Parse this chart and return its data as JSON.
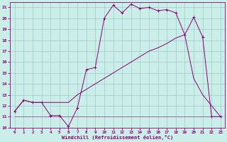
{
  "xlabel": "Windchill (Refroidissement éolien,°C)",
  "bg_color": "#cceee8",
  "grid_color": "#99cccc",
  "line_color": "#880077",
  "xlim": [
    -0.5,
    23.5
  ],
  "ylim": [
    10,
    21.5
  ],
  "yticks": [
    10,
    11,
    12,
    13,
    14,
    15,
    16,
    17,
    18,
    19,
    20,
    21
  ],
  "xticks": [
    0,
    1,
    2,
    3,
    4,
    5,
    6,
    7,
    8,
    9,
    10,
    11,
    12,
    13,
    14,
    15,
    16,
    17,
    18,
    19,
    20,
    21,
    22,
    23
  ],
  "curve1_x": [
    0,
    1,
    2,
    3,
    4,
    5,
    6,
    7,
    8,
    9,
    10,
    11,
    12,
    13,
    14,
    15,
    16,
    17,
    18,
    19,
    20,
    21,
    22,
    23
  ],
  "curve1_y": [
    11.5,
    12.5,
    12.3,
    12.3,
    11.1,
    11.1,
    10.1,
    11.8,
    15.3,
    15.5,
    20.0,
    21.2,
    20.5,
    21.3,
    20.9,
    21.0,
    20.7,
    20.8,
    20.5,
    18.5,
    20.1,
    18.3,
    11.0,
    11.0
  ],
  "curve2_x": [
    0,
    1,
    2,
    3,
    4,
    5,
    6,
    7,
    8,
    9,
    10,
    11,
    12,
    13,
    14,
    15,
    16,
    17,
    18,
    19,
    20,
    21,
    22,
    23
  ],
  "curve2_y": [
    11.0,
    11.0,
    11.0,
    11.0,
    11.0,
    11.0,
    11.0,
    11.0,
    11.0,
    11.0,
    11.0,
    11.0,
    11.0,
    11.0,
    11.0,
    11.0,
    11.0,
    11.0,
    11.0,
    11.0,
    11.0,
    11.0,
    11.0,
    11.0
  ],
  "curve3_x": [
    0,
    1,
    2,
    3,
    4,
    5,
    6,
    7,
    8,
    9,
    10,
    11,
    12,
    13,
    14,
    15,
    16,
    17,
    18,
    19,
    20,
    21,
    22,
    23
  ],
  "curve3_y": [
    11.5,
    12.5,
    12.3,
    12.3,
    12.3,
    12.3,
    12.3,
    13.0,
    13.5,
    14.0,
    14.5,
    15.0,
    15.5,
    16.0,
    16.5,
    17.0,
    17.3,
    17.7,
    18.2,
    18.5,
    14.5,
    13.0,
    12.0,
    11.0
  ]
}
